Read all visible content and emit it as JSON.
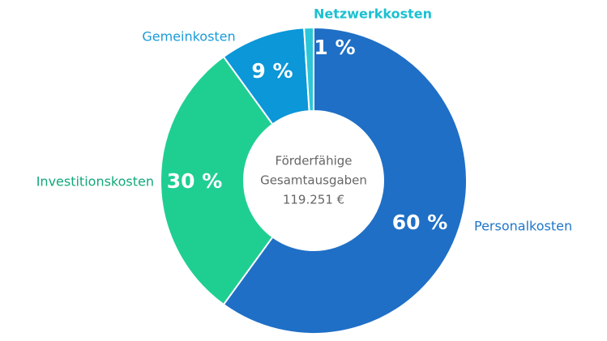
{
  "chart_data": {
    "type": "donut",
    "categories": [
      "Personalkosten",
      "Investitionskosten",
      "Gemeinkosten",
      "Netzwerkkosten"
    ],
    "values": [
      60,
      30,
      9,
      1
    ],
    "value_labels": [
      "60 %",
      "30 %",
      "9 %",
      "1 %"
    ],
    "colors": [
      "#1f6fc6",
      "#1fcf92",
      "#0b97d8",
      "#2cc6d8"
    ],
    "label_colors": [
      "#1f77c9",
      "#13a87a",
      "#1a9bd7",
      "#1cc0d0"
    ],
    "center_text": [
      "Förderfähige",
      "Gesamtausgaben",
      "119.251 €"
    ]
  }
}
